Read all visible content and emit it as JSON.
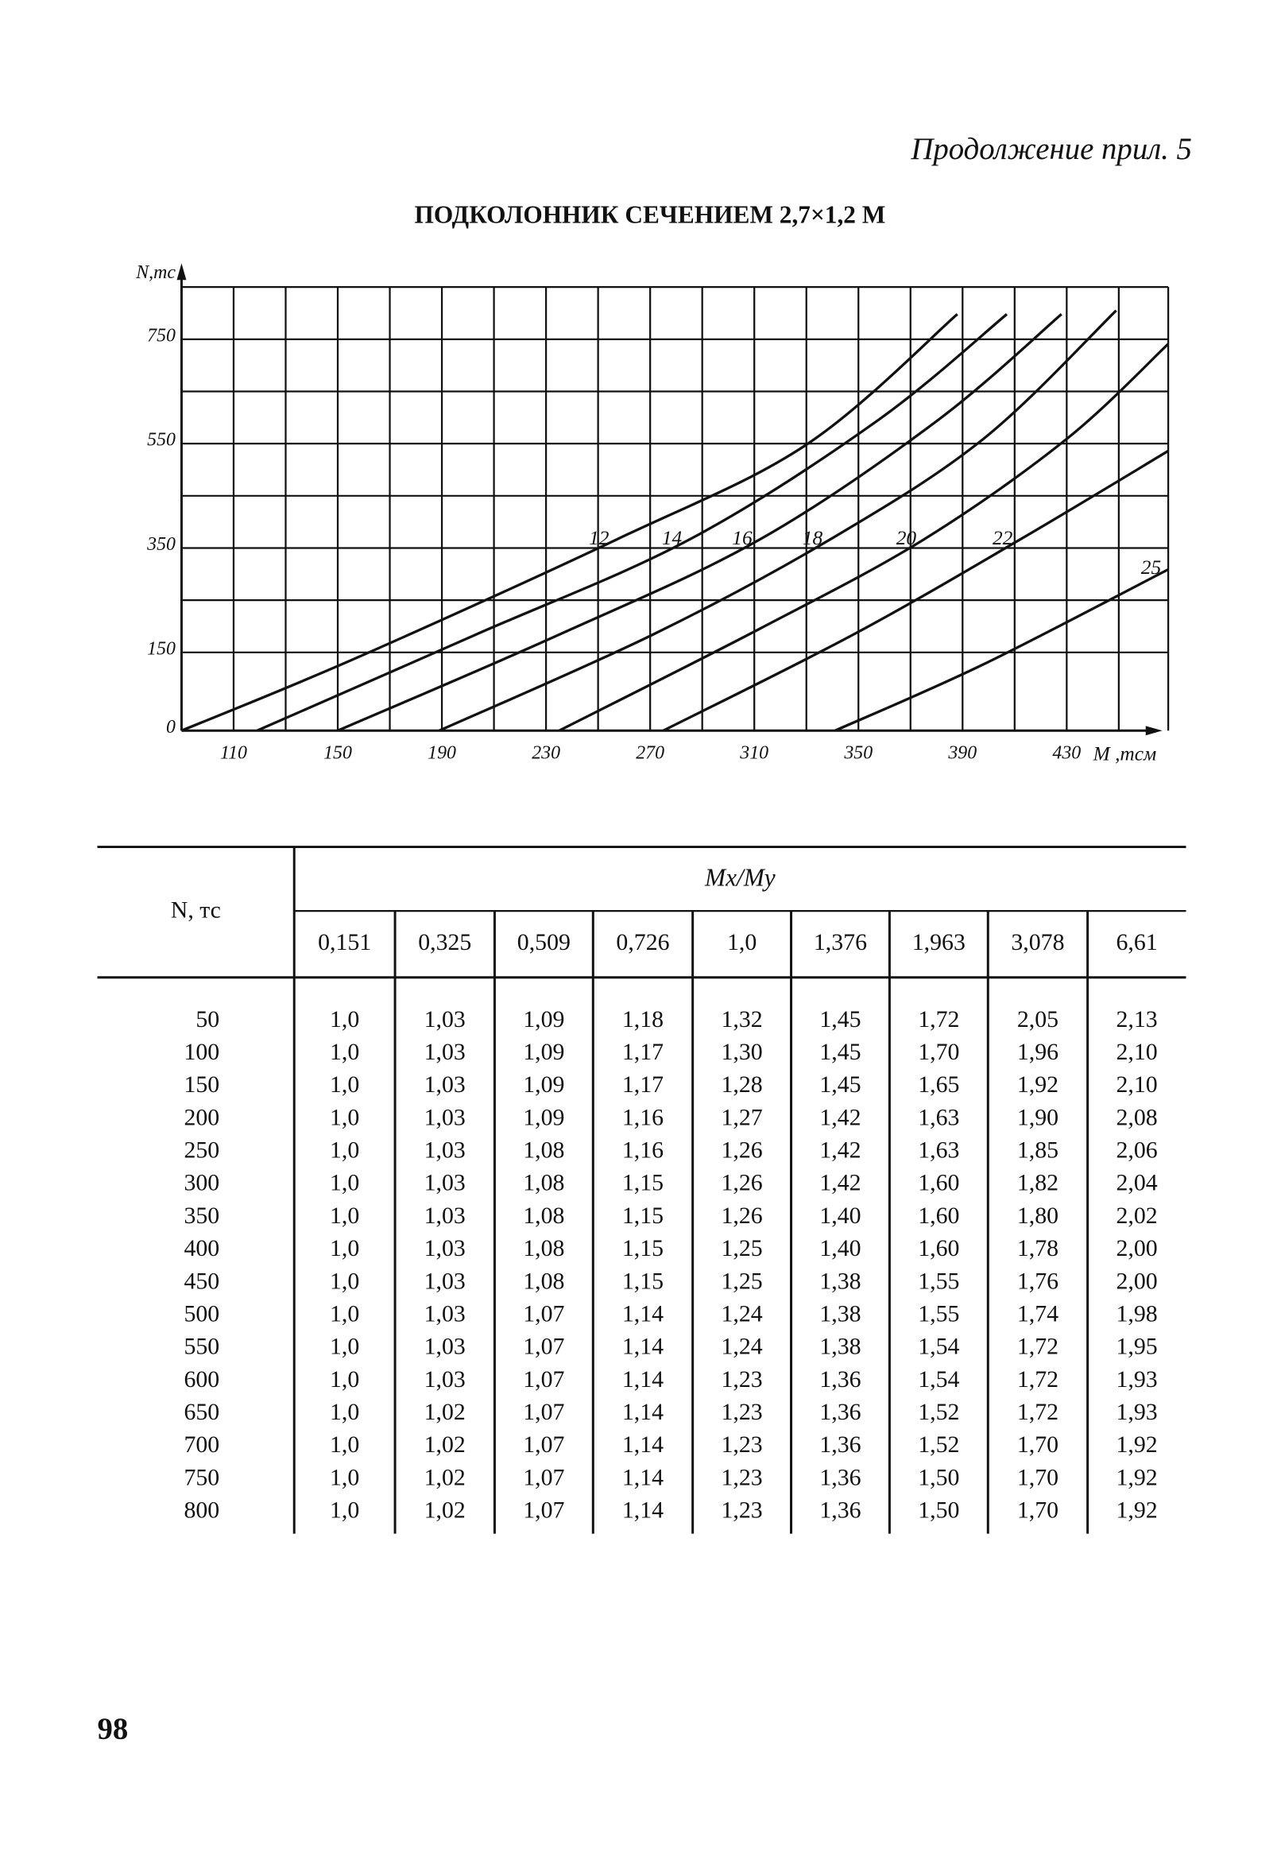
{
  "header": {
    "continuation": "Продолжение прил. 5"
  },
  "chart_data": {
    "type": "line",
    "title": "ПОДКОЛОННИК СЕЧЕНИЕМ 2,7×1,2 М",
    "x_label": "M ,тсм",
    "y_label": "N,тс",
    "xlim": [
      90,
      469
    ],
    "ylim": [
      0,
      850
    ],
    "xticks": [
      110,
      150,
      190,
      230,
      270,
      310,
      350,
      390,
      430
    ],
    "yticks": [
      0,
      150,
      350,
      550,
      750
    ],
    "xgrid": [
      110,
      130,
      150,
      170,
      190,
      210,
      230,
      250,
      270,
      290,
      310,
      330,
      350,
      370,
      390,
      410,
      430,
      450,
      469
    ],
    "ygrid": [
      150,
      250,
      350,
      450,
      550,
      650,
      750,
      850
    ],
    "color": "#111111",
    "series": [
      {
        "name": "12",
        "x": [
          90,
          157,
          257,
          330,
          388
        ],
        "values": [
          0,
          139,
          366,
          548,
          798
        ]
      },
      {
        "name": "14",
        "x": [
          119,
          203,
          285,
          357,
          407
        ],
        "values": [
          0,
          184,
          366,
          593,
          798
        ]
      },
      {
        "name": "16",
        "x": [
          150,
          235,
          312,
          380,
          428
        ],
        "values": [
          0,
          184,
          366,
          593,
          798
        ]
      },
      {
        "name": "18",
        "x": [
          189,
          271,
          339,
          398,
          449
        ],
        "values": [
          0,
          184,
          366,
          559,
          805
        ]
      },
      {
        "name": "20",
        "x": [
          235,
          312,
          375,
          430,
          469
        ],
        "values": [
          0,
          195,
          366,
          559,
          741
        ]
      },
      {
        "name": "22",
        "x": [
          275,
          348,
          412,
          469
        ],
        "values": [
          0,
          184,
          366,
          536
        ]
      },
      {
        "name": "25",
        "x": [
          341,
          398,
          469
        ],
        "values": [
          0,
          127,
          309
        ]
      }
    ]
  },
  "table": {
    "row_header": "N, тс",
    "group_header": "Mx/My",
    "columns": [
      "0,151",
      "0,325",
      "0,509",
      "0,726",
      "1,0",
      "1,376",
      "1,963",
      "3,078",
      "6,61"
    ],
    "rows": [
      [
        "50",
        "1,0",
        "1,03",
        "1,09",
        "1,18",
        "1,32",
        "1,45",
        "1,72",
        "2,05",
        "2,13"
      ],
      [
        "100",
        "1,0",
        "1,03",
        "1,09",
        "1,17",
        "1,30",
        "1,45",
        "1,70",
        "1,96",
        "2,10"
      ],
      [
        "150",
        "1,0",
        "1,03",
        "1,09",
        "1,17",
        "1,28",
        "1,45",
        "1,65",
        "1,92",
        "2,10"
      ],
      [
        "200",
        "1,0",
        "1,03",
        "1,09",
        "1,16",
        "1,27",
        "1,42",
        "1,63",
        "1,90",
        "2,08"
      ],
      [
        "250",
        "1,0",
        "1,03",
        "1,08",
        "1,16",
        "1,26",
        "1,42",
        "1,63",
        "1,85",
        "2,06"
      ],
      [
        "300",
        "1,0",
        "1,03",
        "1,08",
        "1,15",
        "1,26",
        "1,42",
        "1,60",
        "1,82",
        "2,04"
      ],
      [
        "350",
        "1,0",
        "1,03",
        "1,08",
        "1,15",
        "1,26",
        "1,40",
        "1,60",
        "1,80",
        "2,02"
      ],
      [
        "400",
        "1,0",
        "1,03",
        "1,08",
        "1,15",
        "1,25",
        "1,40",
        "1,60",
        "1,78",
        "2,00"
      ],
      [
        "450",
        "1,0",
        "1,03",
        "1,08",
        "1,15",
        "1,25",
        "1,38",
        "1,55",
        "1,76",
        "2,00"
      ],
      [
        "500",
        "1,0",
        "1,03",
        "1,07",
        "1,14",
        "1,24",
        "1,38",
        "1,55",
        "1,74",
        "1,98"
      ],
      [
        "550",
        "1,0",
        "1,03",
        "1,07",
        "1,14",
        "1,24",
        "1,38",
        "1,54",
        "1,72",
        "1,95"
      ],
      [
        "600",
        "1,0",
        "1,03",
        "1,07",
        "1,14",
        "1,23",
        "1,36",
        "1,54",
        "1,72",
        "1,93"
      ],
      [
        "650",
        "1,0",
        "1,02",
        "1,07",
        "1,14",
        "1,23",
        "1,36",
        "1,52",
        "1,72",
        "1,93"
      ],
      [
        "700",
        "1,0",
        "1,02",
        "1,07",
        "1,14",
        "1,23",
        "1,36",
        "1,52",
        "1,70",
        "1,92"
      ],
      [
        "750",
        "1,0",
        "1,02",
        "1,07",
        "1,14",
        "1,23",
        "1,36",
        "1,50",
        "1,70",
        "1,92"
      ],
      [
        "800",
        "1,0",
        "1,02",
        "1,07",
        "1,14",
        "1,23",
        "1,36",
        "1,50",
        "1,70",
        "1,92"
      ]
    ]
  },
  "page_number": "98"
}
